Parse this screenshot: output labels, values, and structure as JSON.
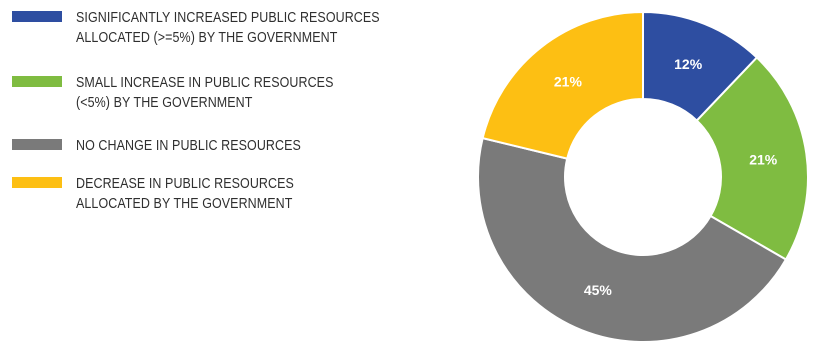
{
  "chart_data": {
    "type": "pie",
    "donut": true,
    "legend_position": "left",
    "categories": [
      "SIGNIFICANTLY INCREASED PUBLIC RESOURCES\nALLOCATED (>=5%) BY THE GOVERNMENT",
      "SMALL INCREASE IN PUBLIC RESOURCES\n(<5%) BY THE GOVERNMENT",
      "NO CHANGE IN PUBLIC RESOURCES",
      "DECREASE IN PUBLIC RESOURCES\nALLOCATED BY THE GOVERNMENT"
    ],
    "values": [
      12,
      21,
      45,
      21
    ],
    "labels": [
      "12%",
      "21%",
      "45%",
      "21%"
    ],
    "colors": [
      "#2e4ea1",
      "#7fbc41",
      "#7a7a7a",
      "#fdbf13"
    ]
  }
}
